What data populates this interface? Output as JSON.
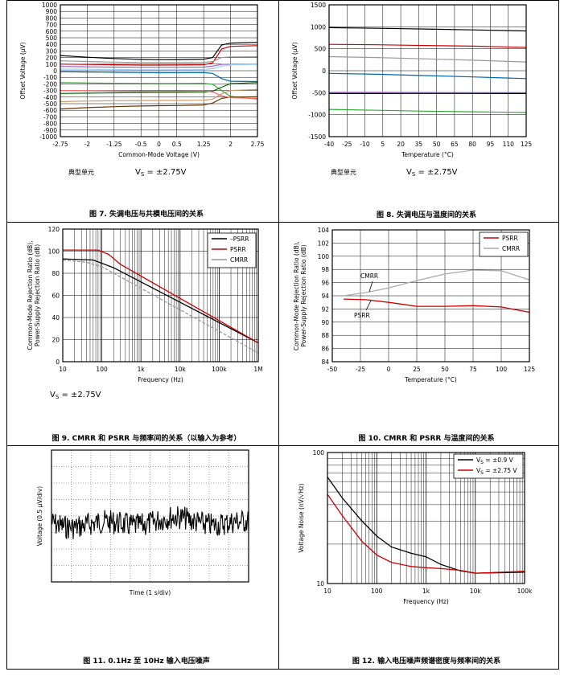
{
  "figures": [
    {
      "caption": "图 7. 失调电压与共模电压间的关系",
      "note_left": "典型单元",
      "note_right": "V",
      "note_right_sub": "S",
      "note_right_tail": " = ±2.75V"
    },
    {
      "caption": "图 8. 失调电压与温度间的关系",
      "note_left": "典型单元",
      "note_right": "V",
      "note_right_sub": "S",
      "note_right_tail": " = ±2.75V"
    },
    {
      "caption": "图 9. CMRR 和 PSRR 与频率间的关系（以输入为参考）",
      "note_left": "",
      "note_right": "V",
      "note_right_sub": "S",
      "note_right_tail": " = ±2.75V"
    },
    {
      "caption": "图 10. CMRR 和 PSRR 与温度间的关系",
      "annotations": [
        "CMRR",
        "PSRR"
      ]
    },
    {
      "caption": "图 11. 0.1Hz 至 10Hz 输入电压噪声"
    },
    {
      "caption": "图 12. 输入电压噪声频谱密度与频率间的关系"
    }
  ],
  "chart_data": [
    {
      "type": "line",
      "xlabel": "Common-Mode Voltage (V)",
      "ylabel": "Offset Voltage (μV)",
      "xlim": [
        -2.75,
        2.75
      ],
      "ylim": [
        -1000,
        1000
      ],
      "xticks": [
        "-2.75",
        "-2",
        "-1.25",
        "-0.5",
        "0",
        "0.5",
        "1.25",
        "2",
        "2.75"
      ],
      "xtick_values": [
        -2.75,
        -2,
        -1.25,
        -0.5,
        0,
        0.5,
        1.25,
        2,
        2.75
      ],
      "yticks": [
        -1000,
        -900,
        -800,
        -700,
        -600,
        -500,
        -400,
        -300,
        -200,
        -100,
        0,
        100,
        200,
        300,
        400,
        500,
        600,
        700,
        800,
        900,
        1000
      ],
      "x": [
        -2.75,
        -2,
        -1.25,
        -0.5,
        0,
        0.5,
        1.25,
        1.5,
        1.75,
        2,
        2.75
      ],
      "series": [
        {
          "color": "#000000",
          "values": [
            230,
            205,
            185,
            172,
            168,
            170,
            175,
            200,
            390,
            420,
            430
          ]
        },
        {
          "color": "#cc0000",
          "values": [
            100,
            95,
            90,
            85,
            85,
            86,
            90,
            120,
            330,
            370,
            380
          ]
        },
        {
          "color": "#9966cc",
          "values": [
            65,
            60,
            55,
            52,
            52,
            52,
            55,
            70,
            95,
            100,
            100
          ]
        },
        {
          "color": "#99ccff",
          "values": [
            25,
            22,
            18,
            15,
            15,
            15,
            18,
            30,
            70,
            90,
            95
          ]
        },
        {
          "color": "#999999",
          "values": [
            150,
            140,
            130,
            125,
            123,
            123,
            125,
            140,
            200,
            210,
            212
          ]
        },
        {
          "color": "#0066aa",
          "values": [
            -15,
            -20,
            -25,
            -28,
            -30,
            -30,
            -28,
            -40,
            -120,
            -160,
            -165
          ]
        },
        {
          "color": "#33aa33",
          "values": [
            -180,
            -185,
            -190,
            -192,
            -193,
            -193,
            -190,
            -205,
            -300,
            -390,
            -430
          ]
        },
        {
          "color": "#006600",
          "values": [
            -345,
            -340,
            -335,
            -330,
            -328,
            -328,
            -325,
            -310,
            -250,
            -195,
            -180
          ]
        },
        {
          "color": "#cc9966",
          "values": [
            -470,
            -460,
            -455,
            -452,
            -450,
            -450,
            -448,
            -430,
            -350,
            -300,
            -285
          ]
        },
        {
          "color": "#663300",
          "values": [
            -580,
            -560,
            -545,
            -535,
            -530,
            -528,
            -520,
            -490,
            -420,
            -400,
            -395
          ]
        },
        {
          "color": "#ff6666",
          "values": [
            -300,
            -305,
            -310,
            -312,
            -313,
            -312,
            -310,
            -320,
            -380,
            -410,
            -420
          ]
        }
      ]
    },
    {
      "type": "line",
      "xlabel": "Temperature (°C)",
      "ylabel": "Offset Voltage (μV)",
      "xlim": [
        -40,
        125
      ],
      "ylim": [
        -1500,
        1500
      ],
      "xticks": [
        "-40",
        "-25",
        "-10",
        "5",
        "20",
        "35",
        "50",
        "65",
        "80",
        "95",
        "110",
        "125"
      ],
      "xtick_values": [
        -40,
        -25,
        -10,
        5,
        20,
        35,
        50,
        65,
        80,
        95,
        110,
        125
      ],
      "yticks": [
        -1500,
        -1000,
        -500,
        0,
        500,
        1000,
        1500
      ],
      "x": [
        -40,
        0,
        40,
        80,
        125
      ],
      "series": [
        {
          "color": "#000000",
          "values": [
            980,
            965,
            950,
            930,
            905
          ]
        },
        {
          "color": "#cc0000",
          "values": [
            600,
            590,
            575,
            560,
            530
          ]
        },
        {
          "color": "#999999",
          "values": [
            320,
            300,
            270,
            240,
            200
          ]
        },
        {
          "color": "#0066aa",
          "values": [
            -60,
            -80,
            -110,
            -140,
            -180
          ]
        },
        {
          "color": "#9966cc",
          "values": [
            -490,
            -492,
            -495,
            -498,
            -500
          ]
        },
        {
          "color": "#000000",
          "values": [
            -520,
            -520,
            -518,
            -518,
            -520
          ]
        },
        {
          "color": "#33aa33",
          "values": [
            -880,
            -900,
            -920,
            -935,
            -950
          ]
        }
      ]
    },
    {
      "type": "line",
      "xlabel": "Frequency (Hz)",
      "ylabel": "Common-Mode Rejection Ratio (dB), Power-Supply Rejection Ratio (dB)",
      "xscale": "log",
      "xlim": [
        10,
        1000000
      ],
      "ylim": [
        0,
        120
      ],
      "xticks": [
        "10",
        "100",
        "1k",
        "10k",
        "100k",
        "1M"
      ],
      "xtick_values": [
        10,
        100,
        1000,
        10000,
        100000,
        1000000
      ],
      "yticks": [
        0,
        20,
        40,
        60,
        80,
        100,
        120
      ],
      "legend": "top-right",
      "series": [
        {
          "name": "–PSRR",
          "color": "#000000",
          "x": [
            10,
            60,
            200,
            1000000
          ],
          "values": [
            93,
            92,
            85,
            17
          ]
        },
        {
          "name": "PSRR",
          "color": "#cc0000",
          "x": [
            10,
            80,
            150,
            300,
            1000000
          ],
          "values": [
            101,
            101,
            97,
            88,
            17
          ]
        },
        {
          "name": "CMRR",
          "color": "#999999",
          "x": [
            10,
            40,
            100,
            1000000
          ],
          "values": [
            92,
            90,
            86,
            8
          ]
        }
      ]
    },
    {
      "type": "line",
      "xlabel": "Temperature (°C)",
      "ylabel": "Common-Mode Rejection Ratio (dB), Power-Supply Rejection Ratio (dB)",
      "xlim": [
        -50,
        125
      ],
      "ylim": [
        84,
        104
      ],
      "xticks": [
        "-50",
        "-25",
        "0",
        "25",
        "50",
        "75",
        "100",
        "125"
      ],
      "xtick_values": [
        -50,
        -25,
        0,
        25,
        50,
        75,
        100,
        125
      ],
      "yticks": [
        84,
        86,
        88,
        90,
        92,
        94,
        96,
        98,
        100,
        102,
        104
      ],
      "legend": "top-right",
      "series": [
        {
          "name": "PSRR",
          "color": "#cc0000",
          "x": [
            -40,
            -20,
            0,
            25,
            50,
            75,
            100,
            125
          ],
          "values": [
            93.5,
            93.4,
            93.0,
            92.4,
            92.4,
            92.5,
            92.3,
            91.5
          ]
        },
        {
          "name": "CMRR",
          "color": "#aaaaaa",
          "x": [
            -40,
            -20,
            0,
            25,
            50,
            75,
            100,
            125
          ],
          "values": [
            94.0,
            94.5,
            95.2,
            96.3,
            97.3,
            97.9,
            97.8,
            96.4
          ]
        }
      ]
    },
    {
      "type": "line",
      "xlabel": "Time (1 s/div)",
      "ylabel": "Voltage (0.5 μV/div)"
    },
    {
      "type": "line",
      "xlabel": "Frequency (Hz)",
      "ylabel": "Voltage Noise (nV/√Hz)",
      "xscale": "log",
      "yscale": "log",
      "xlim": [
        10,
        100000
      ],
      "ylim": [
        10,
        100
      ],
      "xticks": [
        "10",
        "100",
        "1k",
        "10k",
        "100k"
      ],
      "xtick_values": [
        10,
        100,
        1000,
        10000,
        100000
      ],
      "yticks": [
        "10",
        "100"
      ],
      "ytick_values": [
        10,
        100
      ],
      "legend": "top-right",
      "series": [
        {
          "name": "V",
          "name_sub": "S",
          "name_tail": " = ±0.9 V",
          "color": "#000000",
          "x": [
            10,
            20,
            50,
            100,
            200,
            500,
            1000,
            2000,
            5000,
            10000,
            100000
          ],
          "values": [
            65,
            45,
            30,
            23,
            19,
            17,
            16,
            14,
            12.5,
            12,
            12.2
          ]
        },
        {
          "name": "V",
          "name_sub": "S",
          "name_tail": " = ±2.75 V",
          "color": "#cc0000",
          "x": [
            10,
            20,
            50,
            100,
            200,
            500,
            1000,
            2000,
            5000,
            10000,
            100000
          ],
          "values": [
            48,
            33,
            21,
            16.5,
            14.5,
            13.5,
            13.2,
            13,
            12.6,
            12,
            12.4
          ]
        }
      ]
    }
  ]
}
